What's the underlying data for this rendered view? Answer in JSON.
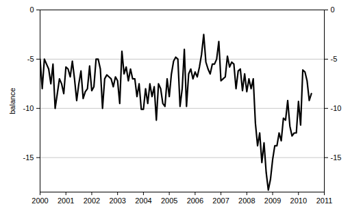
{
  "chart_data": {
    "type": "line",
    "y_label": "balance",
    "color": "#000000",
    "grid": true,
    "xlim": [
      2000,
      2011
    ],
    "xticks": [
      2000,
      2001,
      2002,
      2003,
      2004,
      2005,
      2006,
      2007,
      2008,
      2009,
      2010,
      2011
    ],
    "ylim": [
      -18.5,
      0
    ],
    "yticks": [
      -15,
      -10,
      -5,
      0
    ],
    "x": [
      2000,
      2000.083,
      2000.167,
      2000.25,
      2000.333,
      2000.417,
      2000.5,
      2000.583,
      2000.667,
      2000.75,
      2000.833,
      2000.917,
      2001,
      2001.083,
      2001.167,
      2001.25,
      2001.333,
      2001.417,
      2001.5,
      2001.583,
      2001.667,
      2001.75,
      2001.833,
      2001.917,
      2002,
      2002.083,
      2002.167,
      2002.25,
      2002.333,
      2002.417,
      2002.5,
      2002.583,
      2002.667,
      2002.75,
      2002.833,
      2002.917,
      2003,
      2003.083,
      2003.167,
      2003.25,
      2003.333,
      2003.417,
      2003.5,
      2003.583,
      2003.667,
      2003.75,
      2003.833,
      2003.917,
      2004,
      2004.083,
      2004.167,
      2004.25,
      2004.333,
      2004.417,
      2004.5,
      2004.583,
      2004.667,
      2004.75,
      2004.833,
      2004.917,
      2005,
      2005.083,
      2005.167,
      2005.25,
      2005.333,
      2005.417,
      2005.5,
      2005.583,
      2005.667,
      2005.75,
      2005.833,
      2005.917,
      2006,
      2006.083,
      2006.167,
      2006.25,
      2006.333,
      2006.417,
      2006.5,
      2006.583,
      2006.667,
      2006.75,
      2006.833,
      2006.917,
      2007,
      2007.083,
      2007.167,
      2007.25,
      2007.333,
      2007.417,
      2007.5,
      2007.583,
      2007.667,
      2007.75,
      2007.833,
      2007.917,
      2008,
      2008.083,
      2008.167,
      2008.25,
      2008.333,
      2008.417,
      2008.5,
      2008.583,
      2008.667,
      2008.75,
      2008.833,
      2008.917,
      2009,
      2009.083,
      2009.167,
      2009.25,
      2009.333,
      2009.417,
      2009.5,
      2009.583,
      2009.667,
      2009.75,
      2009.833,
      2009.917,
      2010,
      2010.083,
      2010.167,
      2010.25,
      2010.333,
      2010.417,
      2010.5
    ],
    "values": [
      -5,
      -8,
      -5,
      -5.5,
      -6,
      -7.5,
      -5.5,
      -10,
      -8.5,
      -7,
      -7.5,
      -8.5,
      -5.8,
      -6,
      -6.8,
      -5.2,
      -7,
      -9.2,
      -7.5,
      -6.2,
      -9,
      -8.3,
      -8,
      -5.7,
      -8.2,
      -7.8,
      -5,
      -5,
      -6,
      -10,
      -7,
      -6.6,
      -6.8,
      -7,
      -7.8,
      -6.8,
      -7.2,
      -9.5,
      -4.2,
      -6.5,
      -5.8,
      -7.2,
      -6,
      -7,
      -7,
      -8.8,
      -7.5,
      -10.1,
      -10.1,
      -8,
      -9.5,
      -7.5,
      -8.8,
      -7.8,
      -11.2,
      -7.5,
      -8,
      -9.5,
      -9.8,
      -7,
      -8.8,
      -6.5,
      -5.2,
      -4.8,
      -5,
      -9.8,
      -8,
      -4,
      -9.8,
      -6.5,
      -6,
      -7,
      -6.3,
      -6.8,
      -5.8,
      -4.5,
      -2.5,
      -5.3,
      -6,
      -6.5,
      -5.5,
      -5.5,
      -5,
      -3.2,
      -7.2,
      -7,
      -6.8,
      -4.7,
      -5.8,
      -5.3,
      -5.5,
      -8,
      -6.2,
      -6,
      -8.2,
      -6.5,
      -8.3,
      -7,
      -8,
      -7,
      -11.5,
      -13.8,
      -12.5,
      -15.5,
      -13.5,
      -16.5,
      -18.3,
      -17.2,
      -15.2,
      -13.8,
      -13.8,
      -12.5,
      -13.3,
      -11,
      -11.2,
      -9.2,
      -11.8,
      -12.8,
      -12.5,
      -12.5,
      -9.3,
      -11.7,
      -6.1,
      -6.3,
      -7.2,
      -9.2,
      -8.5
    ]
  }
}
